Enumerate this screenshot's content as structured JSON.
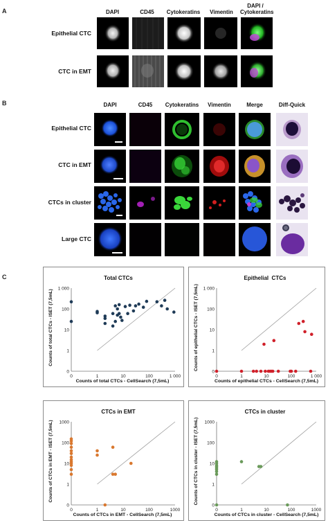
{
  "panels": {
    "a": "A",
    "b": "B",
    "c": "C"
  },
  "panel_a": {
    "columns": [
      "DAPI",
      "CD45",
      "Cytokeratins",
      "Vimentin",
      "DAPI / Cytokeratins"
    ],
    "rows": [
      "Epithelial CTC",
      "CTC in EMT"
    ]
  },
  "panel_b": {
    "columns": [
      "DAPI",
      "CD45",
      "Cytokeratins",
      "Vimentin",
      "Merge",
      "Diff-Quick"
    ],
    "rows": [
      "Epithelial CTC",
      "CTC in EMT",
      "CTCs in cluster",
      "Large CTC"
    ]
  },
  "chart_data": [
    {
      "type": "scatter",
      "title": "Total CTCs",
      "xlabel": "Counts of total CTCs - CellSearch (7,5mL)",
      "ylabel": "Counts of total CTCs - ISET (7,5mL)",
      "x_scale": "log",
      "y_scale": "log",
      "xticks": [
        "0",
        "1",
        "10",
        "100",
        "1 000"
      ],
      "yticks": [
        "0",
        "1",
        "10",
        "100",
        "1 000"
      ],
      "xlim": [
        0,
        1000
      ],
      "ylim": [
        0,
        1000
      ],
      "diagonal": true,
      "color": "#1f3b57",
      "points": [
        [
          0,
          220
        ],
        [
          0,
          25
        ],
        [
          1,
          65
        ],
        [
          1,
          75
        ],
        [
          2,
          45
        ],
        [
          2,
          35
        ],
        [
          2,
          20
        ],
        [
          4,
          60
        ],
        [
          4,
          15
        ],
        [
          5,
          140
        ],
        [
          5,
          25
        ],
        [
          6,
          100
        ],
        [
          6,
          50
        ],
        [
          7,
          160
        ],
        [
          7,
          60
        ],
        [
          8,
          40
        ],
        [
          9,
          28
        ],
        [
          12,
          130
        ],
        [
          15,
          60
        ],
        [
          18,
          150
        ],
        [
          25,
          80
        ],
        [
          30,
          140
        ],
        [
          40,
          170
        ],
        [
          60,
          120
        ],
        [
          80,
          230
        ],
        [
          200,
          220
        ],
        [
          300,
          140
        ],
        [
          400,
          260
        ],
        [
          500,
          100
        ],
        [
          900,
          70
        ]
      ]
    },
    {
      "type": "scatter",
      "title": "Epithelial  CTCs",
      "xlabel": "Counts of epithelial CTCs - CellSearch (7,5mL)",
      "ylabel": "Counts of epithelial CTCs - ISET (7,5mL)",
      "x_scale": "log",
      "y_scale": "log",
      "xticks": [
        "0",
        "1",
        "10",
        "100",
        "1 000"
      ],
      "yticks": [
        "0",
        "1",
        "10",
        "100",
        "1 000"
      ],
      "xlim": [
        0,
        1000
      ],
      "ylim": [
        0,
        1000
      ],
      "diagonal": true,
      "color": "#d0202a",
      "points": [
        [
          0,
          0
        ],
        [
          1,
          0
        ],
        [
          3,
          0
        ],
        [
          4,
          0
        ],
        [
          6,
          0
        ],
        [
          8,
          2
        ],
        [
          9,
          0
        ],
        [
          12,
          0
        ],
        [
          14,
          0
        ],
        [
          16,
          0
        ],
        [
          18,
          0
        ],
        [
          20,
          3
        ],
        [
          30,
          0
        ],
        [
          90,
          0
        ],
        [
          100,
          0
        ],
        [
          150,
          0
        ],
        [
          200,
          20
        ],
        [
          300,
          25
        ],
        [
          350,
          8
        ],
        [
          600,
          0
        ],
        [
          650,
          6
        ]
      ]
    },
    {
      "type": "scatter",
      "title": "CTCs in EMT",
      "xlabel": "Counts of CTCs in EMT - CellSearch (7,5mL)",
      "ylabel": "Counts of CTCs in EMT - ISET (7,5mL)",
      "x_scale": "log",
      "y_scale": "log",
      "xticks": [
        "0",
        "1",
        "10",
        "100",
        "1000"
      ],
      "yticks": [
        "0",
        "1",
        "10",
        "100",
        "1000"
      ],
      "xlim": [
        0,
        1000
      ],
      "ylim": [
        0,
        1000
      ],
      "diagonal": true,
      "color": "#d9782f",
      "points": [
        [
          0,
          150
        ],
        [
          0,
          120
        ],
        [
          0,
          90
        ],
        [
          0,
          60
        ],
        [
          0,
          40
        ],
        [
          0,
          30
        ],
        [
          0,
          20
        ],
        [
          0,
          15
        ],
        [
          0,
          12
        ],
        [
          0,
          10
        ],
        [
          0,
          8
        ],
        [
          0,
          5
        ],
        [
          0,
          3
        ],
        [
          1,
          40
        ],
        [
          1,
          25
        ],
        [
          2,
          0
        ],
        [
          4,
          60
        ],
        [
          4,
          3
        ],
        [
          5,
          3
        ],
        [
          20,
          10
        ]
      ]
    },
    {
      "type": "scatter",
      "title": "CTCs in cluster",
      "xlabel": "Counts of CTCs in cluster - CellSearch (7,5mL)",
      "ylabel": "Counts of CTCs in cluster - ISET (7,5mL)",
      "x_scale": "log",
      "y_scale": "log",
      "xticks": [
        "0",
        "1",
        "10",
        "100",
        "1000"
      ],
      "yticks": [
        "0",
        "1",
        "10",
        "100",
        "1000"
      ],
      "xlim": [
        0,
        1000
      ],
      "ylim": [
        0,
        1000
      ],
      "diagonal": true,
      "color": "#6a9a5a",
      "points": [
        [
          0,
          12
        ],
        [
          0,
          10
        ],
        [
          0,
          8
        ],
        [
          0,
          7
        ],
        [
          0,
          6
        ],
        [
          0,
          5
        ],
        [
          0,
          4
        ],
        [
          0,
          3
        ],
        [
          0,
          0
        ],
        [
          1,
          12
        ],
        [
          5,
          7
        ],
        [
          6,
          7
        ],
        [
          70,
          0
        ]
      ]
    }
  ]
}
